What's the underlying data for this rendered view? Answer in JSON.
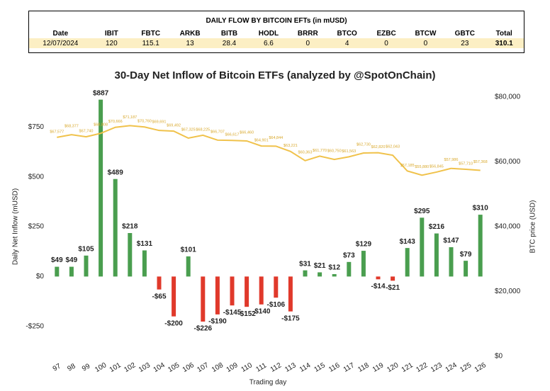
{
  "table": {
    "title": "DAILY FLOW BY BITCOIN EFTs (in mUSD)",
    "columns": [
      "Date",
      "IBIT",
      "FBTC",
      "ARKB",
      "BITB",
      "HODL",
      "BRRR",
      "BTCO",
      "EZBC",
      "BTCW",
      "GBTC",
      "Total"
    ],
    "rows": [
      [
        "12/07/2024",
        "120",
        "115.1",
        "13",
        "28.4",
        "6.6",
        "0",
        "4",
        "0",
        "0",
        "23",
        "310.1"
      ]
    ]
  },
  "chart_data": {
    "type": "bar",
    "title": "30-Day Net Inflow of Bitcoin ETFs (analyzed by @SpotOnChain)",
    "x_label": "Trading day",
    "y_label": "Daily Net Inflow (mUSD)",
    "y2_label": "BTC price (USD)",
    "categories": [
      "97",
      "98",
      "99",
      "100",
      "101",
      "102",
      "103",
      "104",
      "105",
      "106",
      "107",
      "108",
      "109",
      "110",
      "111",
      "112",
      "113",
      "114",
      "115",
      "116",
      "117",
      "118",
      "119",
      "120",
      "121",
      "122",
      "123",
      "124",
      "125",
      "126"
    ],
    "series": [
      {
        "name": "Daily Net Inflow",
        "type": "bar",
        "positive_color": "#4a9e4f",
        "negative_color": "#e0392b",
        "values": [
          49,
          49,
          105,
          887,
          489,
          218,
          131,
          -65,
          -200,
          101,
          -226,
          -190,
          -145,
          -152,
          -140,
          -106,
          -175,
          31,
          21,
          12,
          73,
          129,
          -14,
          -21,
          143,
          295,
          216,
          147,
          79,
          310
        ],
        "value_labels": [
          "$49",
          "$49",
          "$105",
          "$887",
          "$489",
          "$218",
          "$131",
          "-$65",
          "-$200",
          "$101",
          "-$226",
          "-$190",
          "-$145",
          "-$152",
          "-$140",
          "-$106",
          "-$175",
          "$31",
          "$21",
          "$12",
          "$73",
          "$129",
          "-$14",
          "-$21",
          "$143",
          "$295",
          "$216",
          "$147",
          "$79",
          "$310"
        ]
      },
      {
        "name": "BTC price",
        "type": "line",
        "axis": "y2",
        "color": "#f0c24b",
        "values": [
          67577,
          68377,
          67740,
          68808,
          70666,
          71187,
          70760,
          69691,
          69492,
          67325,
          68225,
          66707,
          66617,
          66460,
          64901,
          64844,
          63221,
          60363,
          61770,
          60750,
          61563,
          62730,
          62820,
          62043,
          57185,
          55880,
          56845,
          57986,
          57710,
          57368
        ],
        "value_labels": [
          "$67,577",
          "$68,377",
          "$67,740",
          "$68,808",
          "$70,666",
          "$71,187",
          "$70,760",
          "$69,691",
          "$69,492",
          "$67,325",
          "$68,225",
          "$66,707",
          "$66,617",
          "$66,460",
          "$64,901",
          "$64,844",
          "$63,221",
          "$60,363",
          "$61,770",
          "$60,750",
          "$61,563",
          "$62,730",
          "$62,820",
          "$62,043",
          "$57,185",
          "$55,880",
          "$56,845",
          "$57,986",
          "$57,710",
          "$57,368"
        ]
      }
    ],
    "ylim": [
      -400,
      900
    ],
    "yticks": [
      {
        "value": -250,
        "label": "-$250"
      },
      {
        "value": 0,
        "label": "$0"
      },
      {
        "value": 250,
        "label": "$250"
      },
      {
        "value": 500,
        "label": "$500"
      },
      {
        "value": 750,
        "label": "$750"
      }
    ],
    "y2lim": [
      0,
      80000
    ],
    "y2ticks": [
      {
        "value": 0,
        "label": "$0"
      },
      {
        "value": 20000,
        "label": "$20,000"
      },
      {
        "value": 40000,
        "label": "$40,000"
      },
      {
        "value": 60000,
        "label": "$60,000"
      },
      {
        "value": 80000,
        "label": "$80,000"
      }
    ],
    "grid": false
  }
}
